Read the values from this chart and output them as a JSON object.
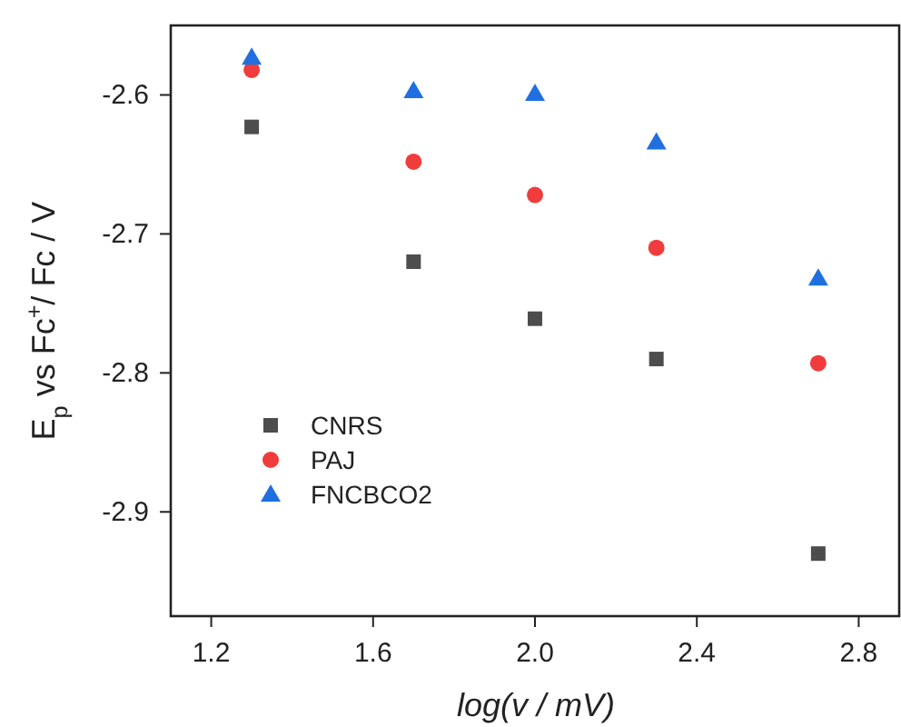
{
  "chart_data": {
    "type": "scatter",
    "xlabel": "log(v / mV)",
    "ylabel": "E$_{p}$ vs Fc$^{+}$/ Fc / V",
    "x": [
      1.3,
      1.7,
      2.0,
      2.3,
      2.7
    ],
    "xlim": [
      1.1,
      2.9
    ],
    "xticks": [
      {
        "value": 1.2,
        "label": "1.2"
      },
      {
        "value": 1.6,
        "label": "1.6"
      },
      {
        "value": 2.0,
        "label": "2.0"
      },
      {
        "value": 2.4,
        "label": "2.4"
      },
      {
        "value": 2.8,
        "label": "2.8"
      }
    ],
    "ylim": [
      -2.975,
      -2.55
    ],
    "yticks": [
      {
        "value": -2.6,
        "label": "-2.6"
      },
      {
        "value": -2.7,
        "label": "-2.7"
      },
      {
        "value": -2.8,
        "label": "-2.8"
      },
      {
        "value": -2.9,
        "label": "-2.9"
      }
    ],
    "legend": "bottom left",
    "grid": false,
    "series": [
      {
        "name": "CNRS",
        "color": "#4d4d4d",
        "marker": "square",
        "values": [
          -2.623,
          -2.72,
          -2.761,
          -2.79,
          -2.93
        ]
      },
      {
        "name": "PAJ",
        "color": "#f03c3c",
        "marker": "circle",
        "values": [
          -2.582,
          -2.648,
          -2.672,
          -2.71,
          -2.793
        ]
      },
      {
        "name": "FNCBCO2",
        "color": "#1f6fe0",
        "marker": "triangle",
        "values": [
          -2.573,
          -2.597,
          -2.599,
          -2.634,
          -2.732
        ]
      }
    ]
  }
}
